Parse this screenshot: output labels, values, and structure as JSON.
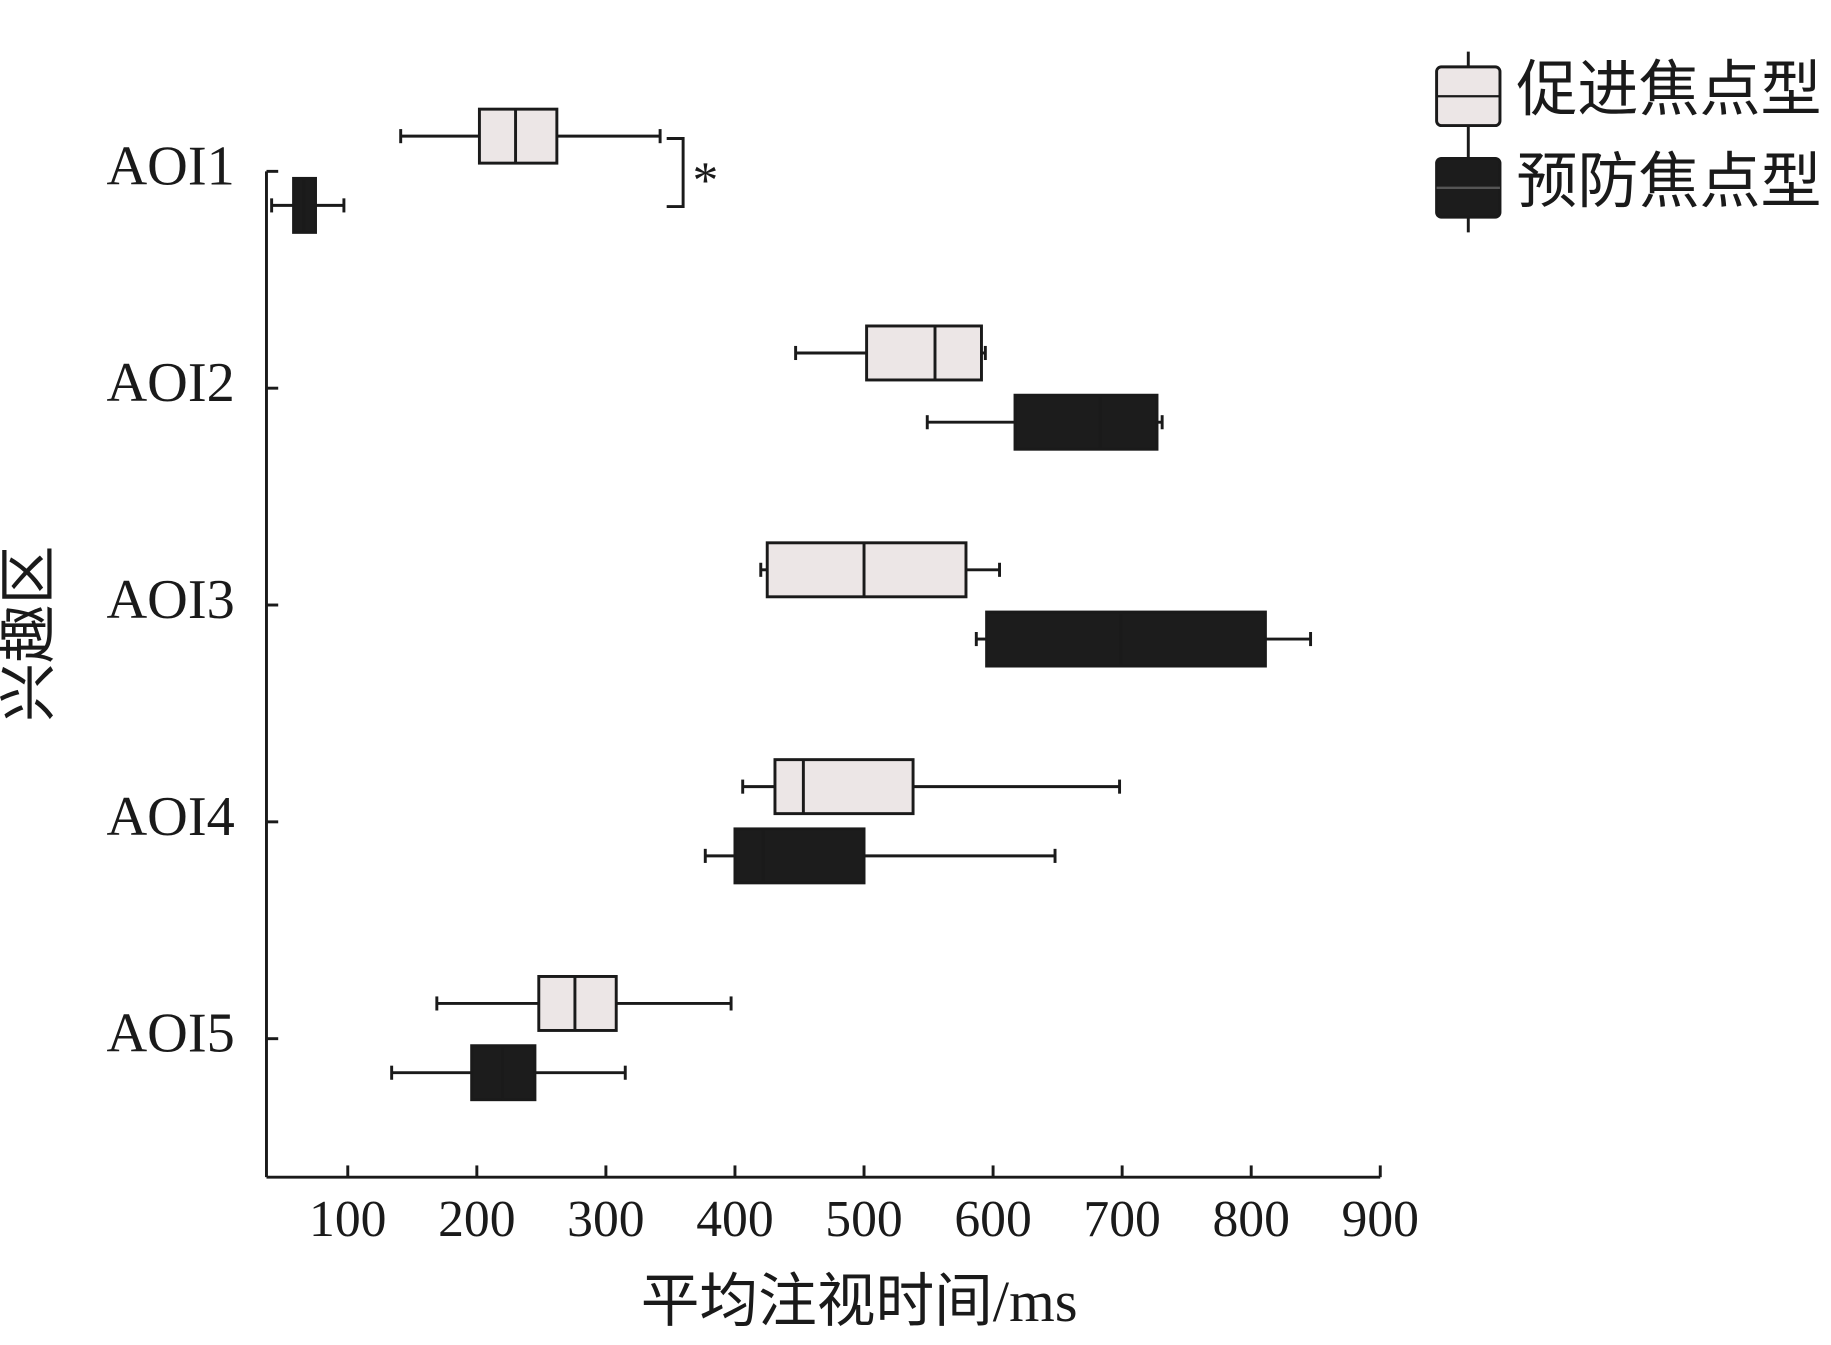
{
  "chart_data": {
    "type": "box",
    "orientation": "horizontal",
    "xlabel": "平均注视时间/ms",
    "ylabel": "兴趣区",
    "categories": [
      "AOI1",
      "AOI2",
      "AOI3",
      "AOI4",
      "AOI5"
    ],
    "xlim": [
      37,
      900
    ],
    "xticks": [
      100,
      200,
      300,
      400,
      500,
      600,
      700,
      800,
      900
    ],
    "annotation": "*",
    "series": [
      {
        "name": "促进焦点型",
        "color": "#ece6e6",
        "values": [
          {
            "min": 141,
            "q1": 202,
            "median": 230,
            "q3": 262,
            "max": 342
          },
          {
            "min": 447,
            "q1": 502,
            "median": 555,
            "q3": 591,
            "max": 594
          },
          {
            "min": 420,
            "q1": 425,
            "median": 500,
            "q3": 579,
            "max": 605
          },
          {
            "min": 406,
            "q1": 431,
            "median": 453,
            "q3": 538,
            "max": 698
          },
          {
            "min": 169,
            "q1": 248,
            "median": 276,
            "q3": 308,
            "max": 397
          }
        ]
      },
      {
        "name": "预防焦点型",
        "color": "#1c1c1c",
        "values": [
          {
            "min": 41,
            "q1": 58,
            "median": 66,
            "q3": 75,
            "max": 97
          },
          {
            "min": 549,
            "q1": 617,
            "median": 683,
            "q3": 727,
            "max": 731
          },
          {
            "min": 587,
            "q1": 595,
            "median": 699,
            "q3": 811,
            "max": 846
          },
          {
            "min": 377,
            "q1": 400,
            "median": 422,
            "q3": 500,
            "max": 648
          },
          {
            "min": 134,
            "q1": 196,
            "median": 220,
            "q3": 245,
            "max": 315
          }
        ]
      }
    ]
  }
}
